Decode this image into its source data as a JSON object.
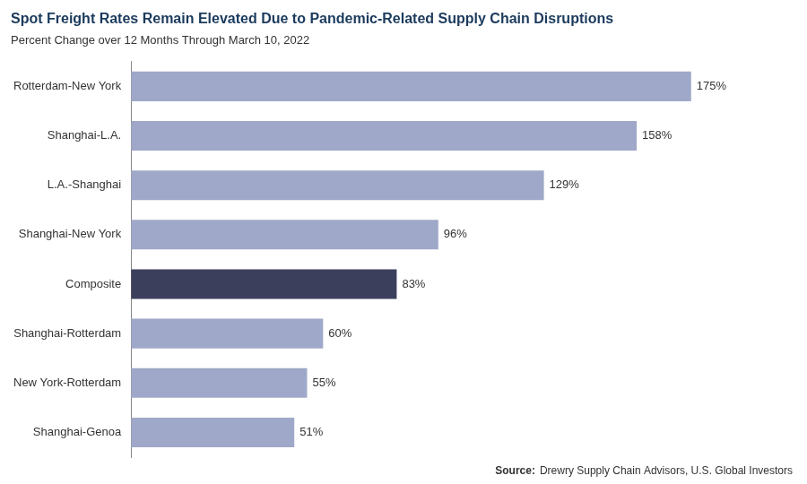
{
  "chart_data": {
    "type": "bar",
    "orientation": "horizontal",
    "title": "Spot Freight Rates Remain Elevated Due to Pandemic-Related Supply Chain Disruptions",
    "subtitle": "Percent Change over 12 Months Through March 10, 2022",
    "annotations": [
      "Source:",
      "Drewry Supply Chain Advisors, U.S. Global Investors"
    ],
    "categories": [
      "Rotterdam-New York",
      "Shanghai-L.A.",
      "L.A.-Shanghai",
      "Shanghai-New York",
      "Composite",
      "Shanghai-Rotterdam",
      "New York-Rotterdam",
      "Shanghai-Genoa"
    ],
    "values": [
      175,
      158,
      129,
      96,
      83,
      60,
      55,
      51
    ],
    "value_labels": [
      "175%",
      "158%",
      "129%",
      "96%",
      "83%",
      "60%",
      "55%",
      "51%"
    ],
    "colors": [
      "#9FA8C8",
      "#9FA8C8",
      "#9FA8C8",
      "#9FA8C8",
      "#3B3F5C",
      "#9FA8C8",
      "#9FA8C8",
      "#9FA8C8"
    ],
    "xlim": [
      0,
      200
    ],
    "grid": false,
    "data_labels": true,
    "tick_labels": "y"
  }
}
